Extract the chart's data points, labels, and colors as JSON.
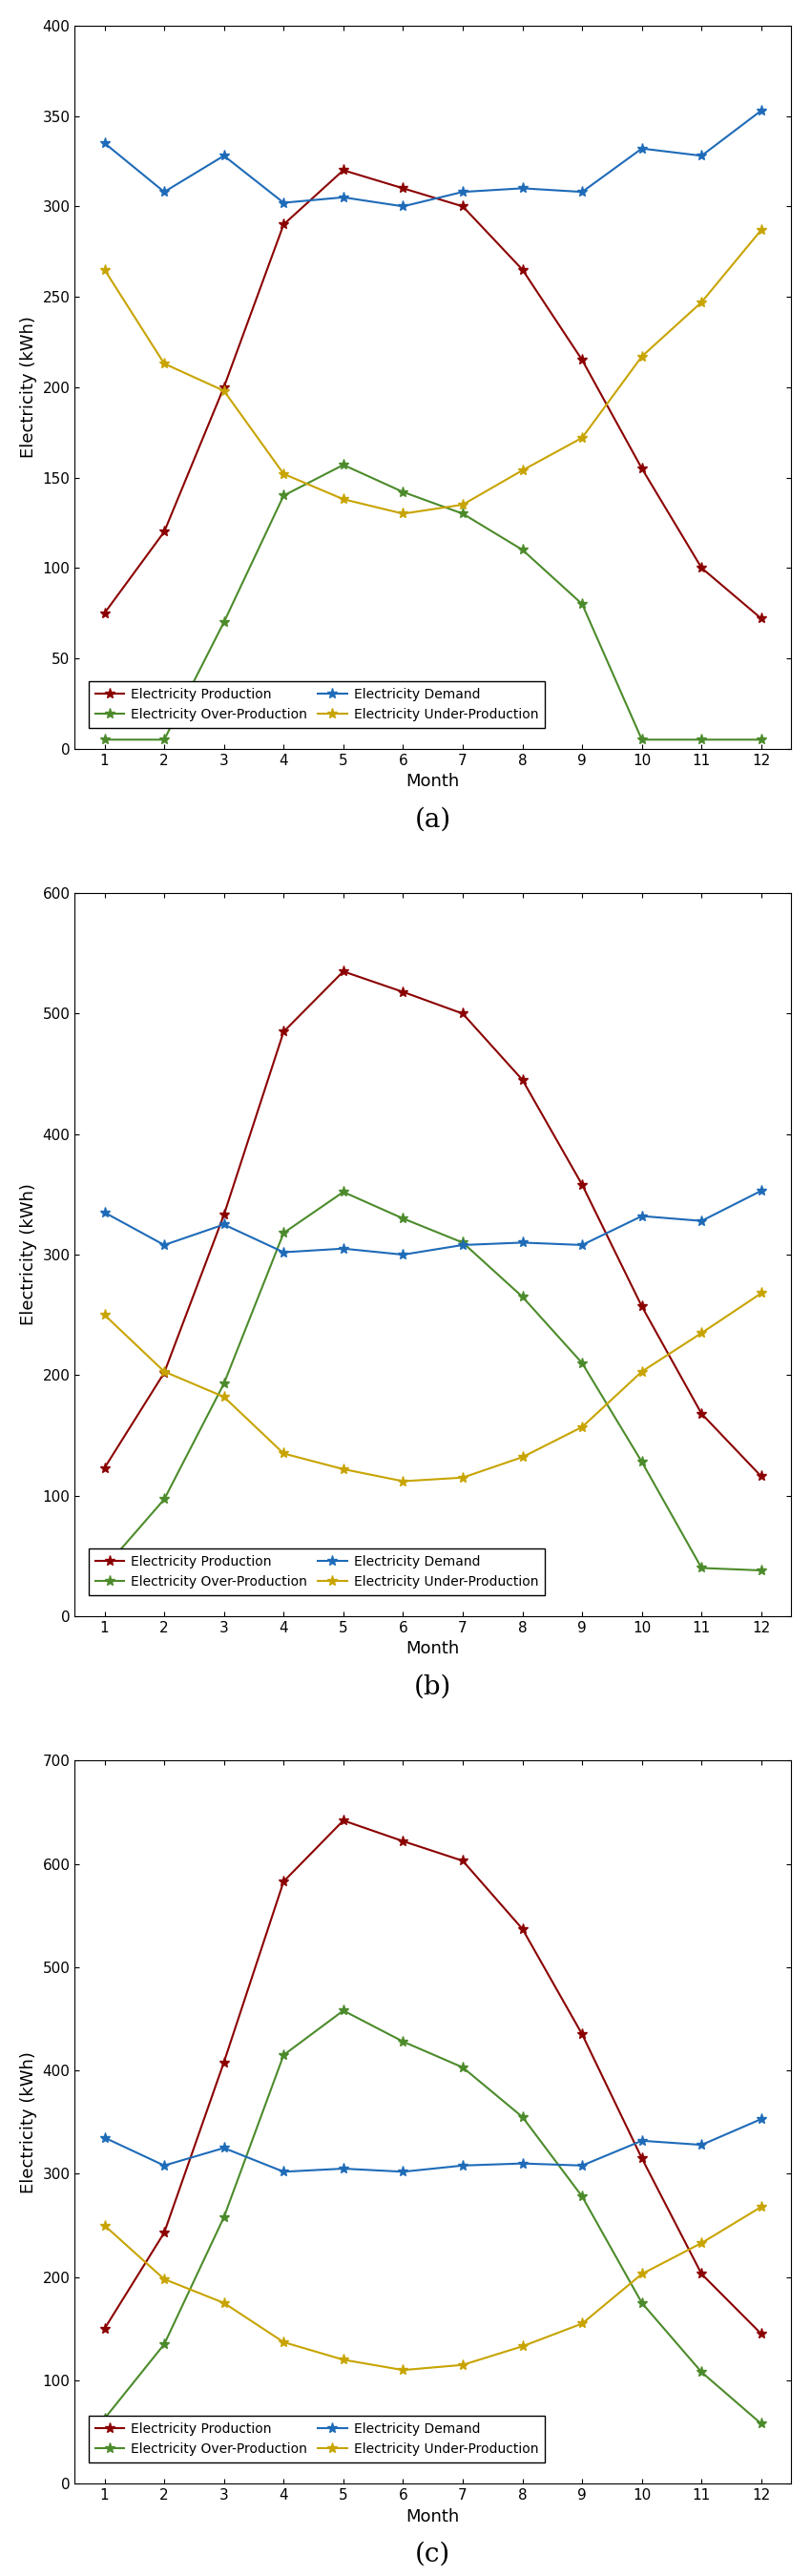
{
  "months": [
    1,
    2,
    3,
    4,
    5,
    6,
    7,
    8,
    9,
    10,
    11,
    12
  ],
  "plots": [
    {
      "label": "(a)",
      "ylim": [
        0,
        400
      ],
      "yticks": [
        0,
        50,
        100,
        150,
        200,
        250,
        300,
        350,
        400
      ],
      "production": [
        75,
        120,
        200,
        290,
        320,
        310,
        300,
        265,
        215,
        155,
        100,
        72
      ],
      "demand": [
        335,
        308,
        328,
        302,
        305,
        300,
        308,
        310,
        308,
        332,
        328,
        353
      ],
      "over_production": [
        5,
        5,
        70,
        140,
        157,
        142,
        130,
        110,
        80,
        5,
        5,
        5
      ],
      "under_production": [
        265,
        213,
        198,
        152,
        138,
        130,
        135,
        154,
        172,
        217,
        247,
        287
      ]
    },
    {
      "label": "(b)",
      "ylim": [
        0,
        600
      ],
      "yticks": [
        0,
        100,
        200,
        300,
        400,
        500,
        600
      ],
      "production": [
        123,
        202,
        333,
        485,
        535,
        518,
        500,
        445,
        358,
        257,
        168,
        116
      ],
      "demand": [
        335,
        308,
        325,
        302,
        305,
        300,
        308,
        310,
        308,
        332,
        328,
        353
      ],
      "over_production": [
        40,
        97,
        193,
        318,
        352,
        330,
        310,
        265,
        210,
        128,
        40,
        38
      ],
      "under_production": [
        250,
        203,
        182,
        135,
        122,
        112,
        115,
        132,
        157,
        203,
        235,
        268
      ]
    },
    {
      "label": "(c)",
      "ylim": [
        0,
        700
      ],
      "yticks": [
        0,
        100,
        200,
        300,
        400,
        500,
        600,
        700
      ],
      "production": [
        150,
        243,
        408,
        583,
        642,
        622,
        603,
        537,
        435,
        315,
        203,
        145
      ],
      "demand": [
        335,
        308,
        325,
        302,
        305,
        302,
        308,
        310,
        308,
        332,
        328,
        353
      ],
      "over_production": [
        63,
        135,
        258,
        415,
        458,
        428,
        403,
        355,
        278,
        175,
        108,
        58
      ],
      "under_production": [
        250,
        198,
        175,
        137,
        120,
        110,
        115,
        133,
        155,
        203,
        233,
        268
      ]
    }
  ],
  "colors": {
    "production": "#8B0000",
    "demand": "#1E6BB8",
    "over_production": "#4C8B2B",
    "under_production": "#C8A400"
  },
  "legend_labels": {
    "production": "Electricity Production",
    "demand": "Electricity Demand",
    "over_production": "Electricity Over-Production",
    "under_production": "Electricity Under-Production"
  },
  "xlabel": "Month",
  "ylabel": "Electricity (kWh)",
  "linewidth": 1.5,
  "markersize": 8,
  "marker": "*"
}
